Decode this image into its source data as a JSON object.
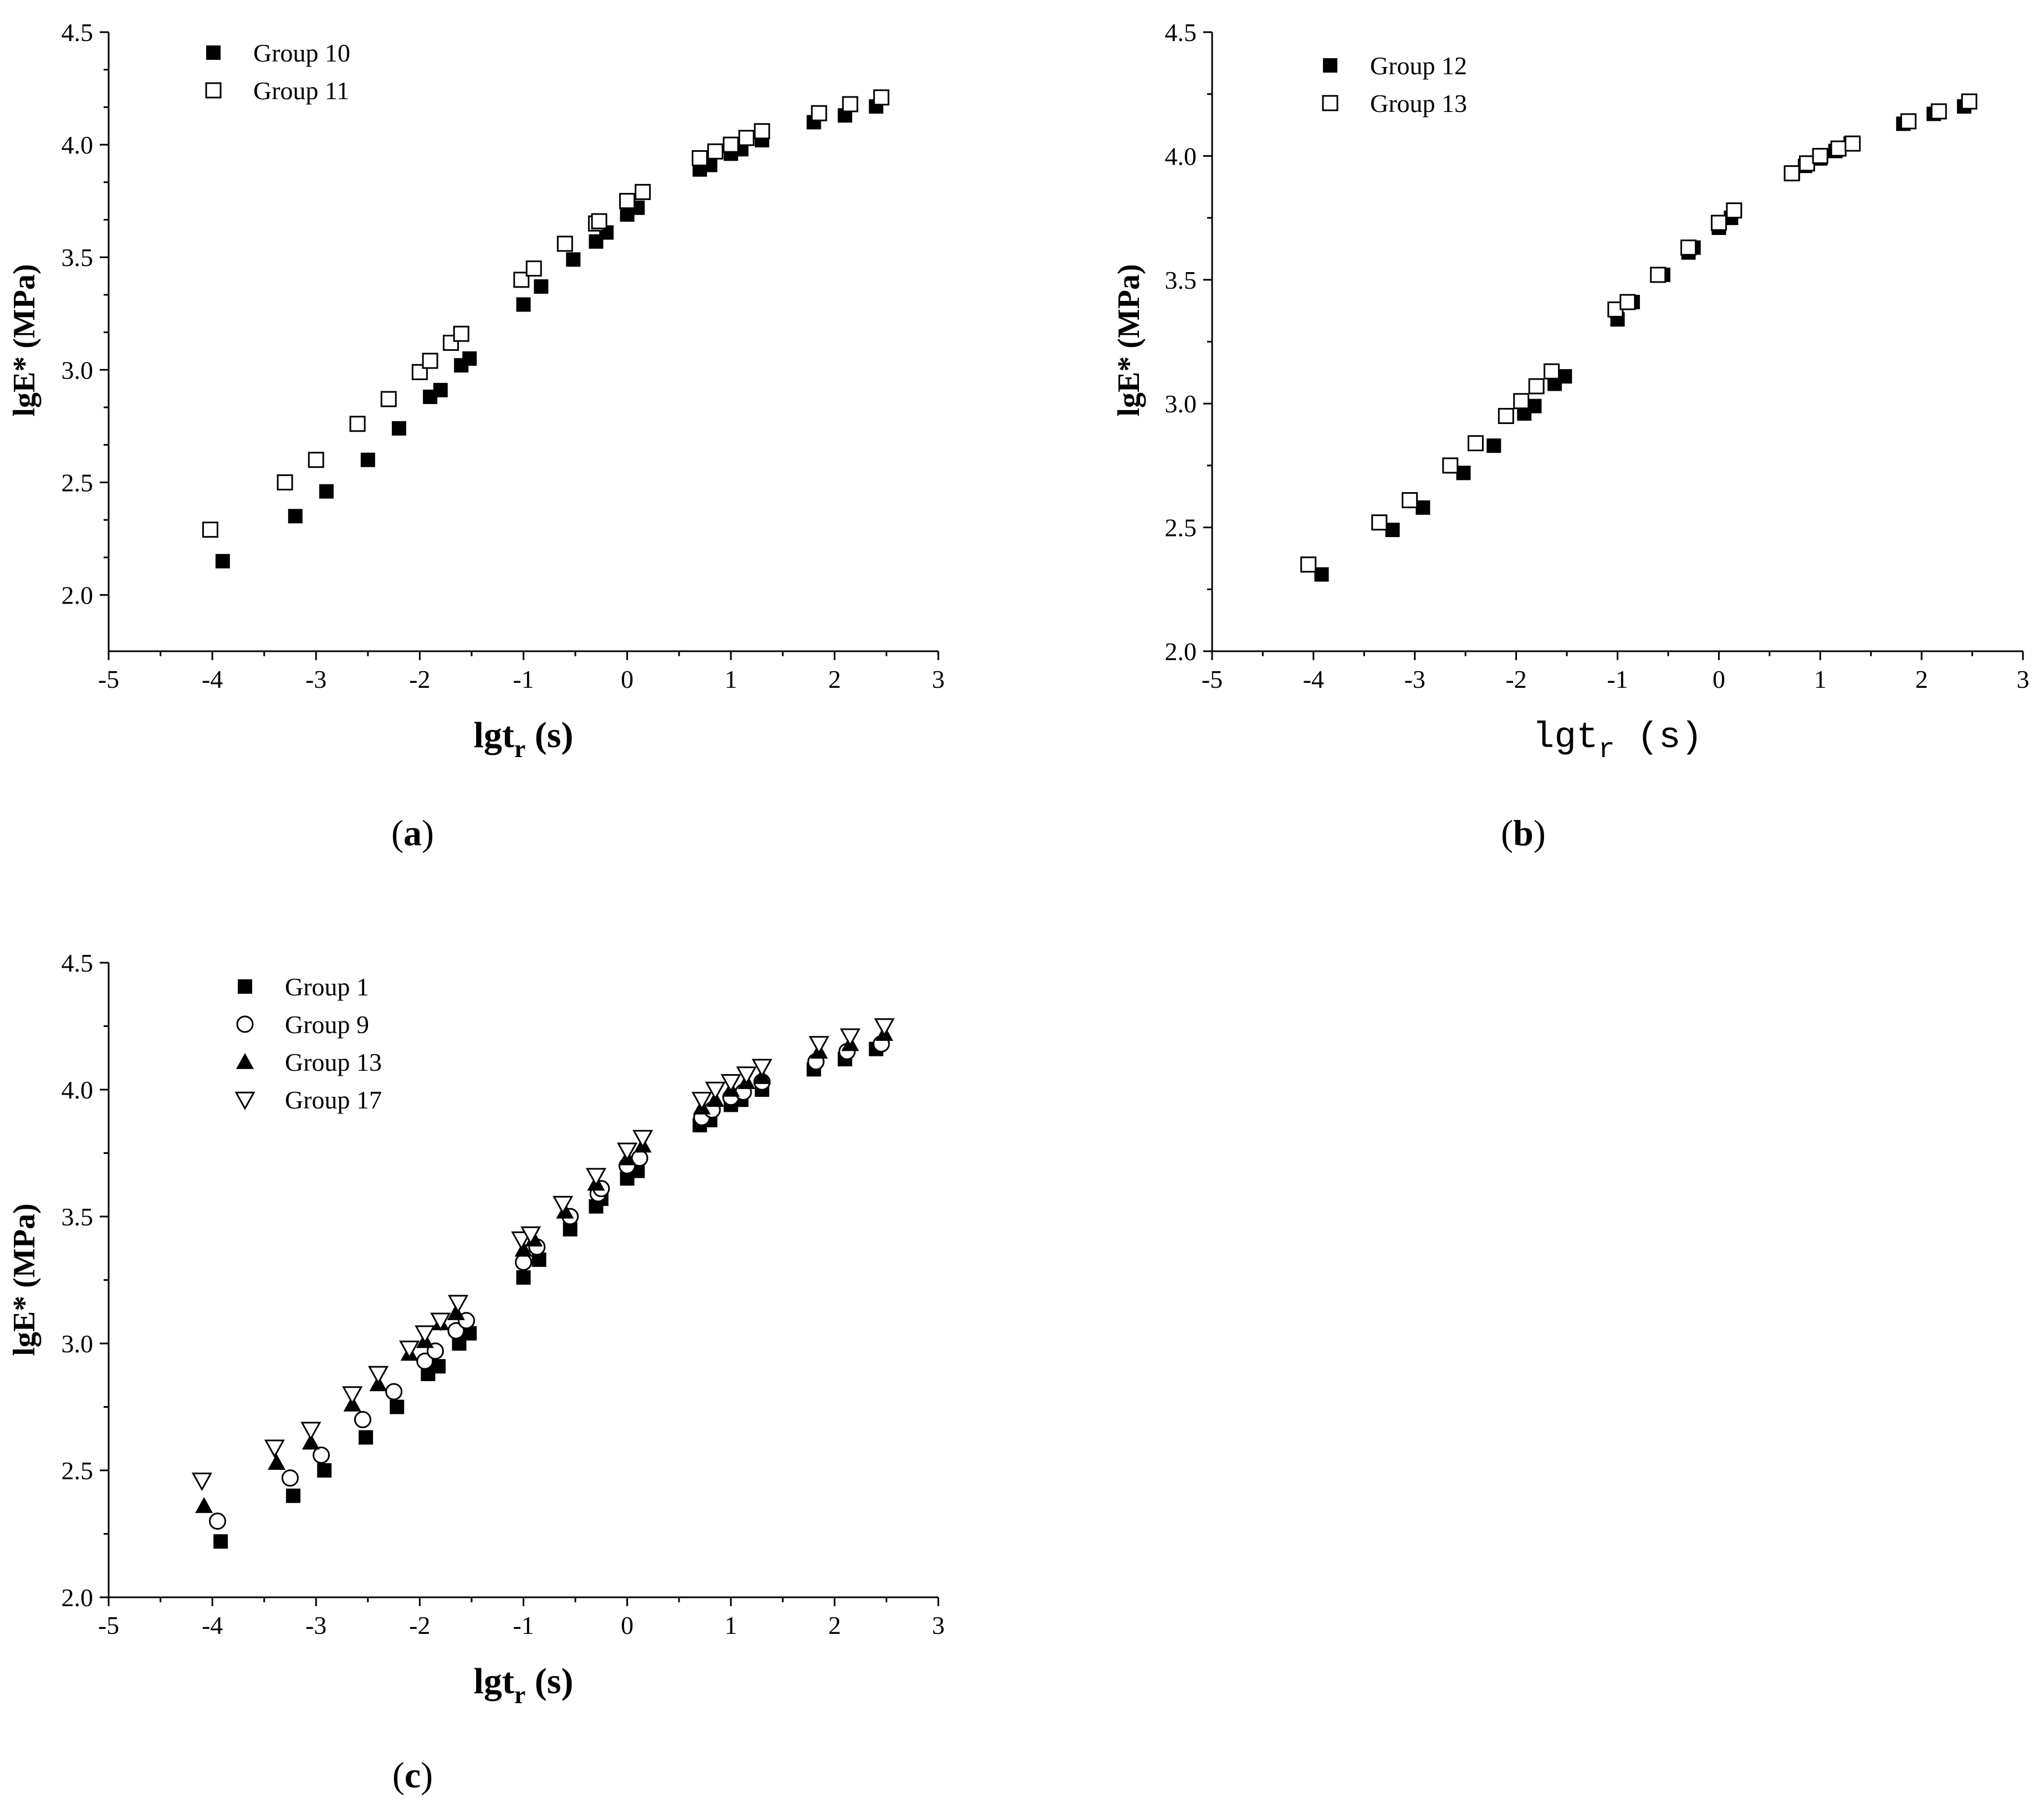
{
  "chart_data": [
    {
      "type": "scatter",
      "panel_label": "a",
      "xlabel": "lgt",
      "xlabel_sub": "r",
      "xlabel_unit": "(s)",
      "ylabel": "lgE* (MPa)",
      "xlim": [
        -5,
        3
      ],
      "ylim": [
        1.75,
        4.5
      ],
      "xticks": [
        -5,
        -4,
        -3,
        -2,
        -1,
        0,
        1,
        2,
        3
      ],
      "yticks": [
        2.0,
        2.5,
        3.0,
        3.5,
        4.0,
        4.5
      ],
      "legend_position": "top-left",
      "series": [
        {
          "name": "Group 10",
          "marker": "filled-square",
          "x": [
            -3.9,
            -3.2,
            -2.9,
            -2.5,
            -2.2,
            -1.9,
            -1.8,
            -1.6,
            -1.52,
            -1.0,
            -0.83,
            -0.52,
            -0.3,
            -0.2,
            0.0,
            0.1,
            0.7,
            0.8,
            1.0,
            1.1,
            1.3,
            1.8,
            2.1,
            2.4
          ],
          "y": [
            2.15,
            2.35,
            2.46,
            2.6,
            2.74,
            2.88,
            2.91,
            3.02,
            3.05,
            3.29,
            3.37,
            3.49,
            3.57,
            3.61,
            3.69,
            3.72,
            3.89,
            3.91,
            3.96,
            3.98,
            4.02,
            4.1,
            4.13,
            4.17
          ]
        },
        {
          "name": "Group 11",
          "marker": "open-square",
          "x": [
            -4.02,
            -3.3,
            -3.0,
            -2.6,
            -2.3,
            -2.0,
            -1.9,
            -1.7,
            -1.6,
            -1.02,
            -0.9,
            -0.6,
            -0.3,
            -0.27,
            0.0,
            0.15,
            0.7,
            0.85,
            1.0,
            1.15,
            1.3,
            1.85,
            2.15,
            2.45
          ],
          "y": [
            2.29,
            2.5,
            2.6,
            2.76,
            2.87,
            2.99,
            3.04,
            3.12,
            3.16,
            3.4,
            3.45,
            3.56,
            3.65,
            3.66,
            3.75,
            3.79,
            3.94,
            3.97,
            4.0,
            4.03,
            4.06,
            4.14,
            4.18,
            4.21
          ]
        }
      ]
    },
    {
      "type": "scatter",
      "panel_label": "b",
      "xlabel": "lgt",
      "xlabel_sub": "r",
      "xlabel_unit": "(s)",
      "ylabel": "lgE* (MPa)",
      "xlim": [
        -5,
        3
      ],
      "ylim": [
        2.0,
        4.5
      ],
      "xticks": [
        -5,
        -4,
        -3,
        -2,
        -1,
        0,
        1,
        2,
        3
      ],
      "yticks": [
        2.0,
        2.5,
        3.0,
        3.5,
        4.0,
        4.5
      ],
      "legend_position": "top-left",
      "series": [
        {
          "name": "Group 12",
          "marker": "filled-square",
          "x": [
            -3.92,
            -3.22,
            -2.92,
            -2.52,
            -2.22,
            -1.92,
            -1.82,
            -1.62,
            -1.52,
            -1.0,
            -0.85,
            -0.55,
            -0.3,
            -0.25,
            0.0,
            0.12,
            0.73,
            0.85,
            1.0,
            1.15,
            1.3,
            1.82,
            2.12,
            2.42
          ],
          "y": [
            2.31,
            2.49,
            2.58,
            2.72,
            2.83,
            2.96,
            2.99,
            3.08,
            3.11,
            3.34,
            3.41,
            3.52,
            3.61,
            3.63,
            3.71,
            3.75,
            3.93,
            3.96,
            3.99,
            4.02,
            4.05,
            4.13,
            4.17,
            4.2
          ]
        },
        {
          "name": "Group 13",
          "marker": "open-square",
          "x": [
            -4.05,
            -3.35,
            -3.05,
            -2.65,
            -2.4,
            -2.1,
            -1.95,
            -1.8,
            -1.65,
            -1.02,
            -0.9,
            -0.6,
            -0.3,
            0.0,
            0.15,
            0.72,
            0.87,
            1.0,
            1.18,
            1.32,
            1.87,
            2.17,
            2.47
          ],
          "y": [
            2.35,
            2.52,
            2.61,
            2.75,
            2.84,
            2.95,
            3.01,
            3.07,
            3.13,
            3.38,
            3.41,
            3.52,
            3.63,
            3.73,
            3.78,
            3.93,
            3.97,
            4.0,
            4.03,
            4.05,
            4.14,
            4.18,
            4.22
          ]
        }
      ]
    },
    {
      "type": "scatter",
      "panel_label": "c",
      "xlabel": "lgt",
      "xlabel_sub": "r",
      "xlabel_unit": "(s)",
      "ylabel": "lgE* (MPa)",
      "xlim": [
        -5,
        3
      ],
      "ylim": [
        2.0,
        4.5
      ],
      "xticks": [
        -5,
        -4,
        -3,
        -2,
        -1,
        0,
        1,
        2,
        3
      ],
      "yticks": [
        2.0,
        2.5,
        3.0,
        3.5,
        4.0,
        4.5
      ],
      "legend_position": "top-left",
      "series": [
        {
          "name": "Group 1",
          "marker": "filled-square",
          "x": [
            -3.92,
            -3.22,
            -2.92,
            -2.52,
            -2.22,
            -1.92,
            -1.82,
            -1.62,
            -1.52,
            -1.0,
            -0.85,
            -0.55,
            -0.3,
            -0.25,
            0.0,
            0.1,
            0.7,
            0.8,
            1.0,
            1.1,
            1.3,
            1.8,
            2.1,
            2.4
          ],
          "y": [
            2.22,
            2.4,
            2.5,
            2.63,
            2.75,
            2.88,
            2.91,
            3.0,
            3.04,
            3.26,
            3.33,
            3.45,
            3.54,
            3.57,
            3.65,
            3.68,
            3.86,
            3.88,
            3.94,
            3.96,
            4.0,
            4.08,
            4.12,
            4.16
          ]
        },
        {
          "name": "Group 9",
          "marker": "open-circle",
          "x": [
            -3.95,
            -3.25,
            -2.95,
            -2.55,
            -2.25,
            -1.95,
            -1.85,
            -1.65,
            -1.55,
            -1.0,
            -0.87,
            -0.55,
            -0.28,
            -0.25,
            0.0,
            0.12,
            0.72,
            0.82,
            1.0,
            1.12,
            1.3,
            1.82,
            2.12,
            2.45
          ],
          "y": [
            2.3,
            2.47,
            2.56,
            2.7,
            2.81,
            2.93,
            2.97,
            3.05,
            3.09,
            3.32,
            3.38,
            3.5,
            3.59,
            3.61,
            3.7,
            3.73,
            3.89,
            3.92,
            3.97,
            3.99,
            4.03,
            4.11,
            4.15,
            4.18
          ]
        },
        {
          "name": "Group 13",
          "marker": "filled-triangle-up",
          "x": [
            -4.08,
            -3.38,
            -3.05,
            -2.65,
            -2.4,
            -2.1,
            -1.95,
            -1.8,
            -1.65,
            -1.0,
            -0.9,
            -0.6,
            -0.3,
            0.0,
            0.15,
            0.72,
            0.85,
            1.0,
            1.15,
            1.3,
            1.85,
            2.15,
            2.48
          ],
          "y": [
            2.36,
            2.53,
            2.61,
            2.76,
            2.84,
            2.96,
            3.01,
            3.08,
            3.12,
            3.37,
            3.41,
            3.52,
            3.63,
            3.73,
            3.78,
            3.93,
            3.96,
            4.0,
            4.03,
            4.05,
            4.15,
            4.18,
            4.22
          ]
        },
        {
          "name": "Group 17",
          "marker": "open-triangle-down",
          "x": [
            -4.1,
            -3.4,
            -3.05,
            -2.65,
            -2.4,
            -2.1,
            -1.95,
            -1.8,
            -1.63,
            -1.02,
            -0.93,
            -0.62,
            -0.3,
            0.0,
            0.15,
            0.72,
            0.85,
            1.0,
            1.15,
            1.3,
            1.85,
            2.15,
            2.48
          ],
          "y": [
            2.46,
            2.59,
            2.66,
            2.8,
            2.88,
            2.98,
            3.04,
            3.09,
            3.16,
            3.41,
            3.43,
            3.55,
            3.66,
            3.76,
            3.81,
            3.96,
            4.0,
            4.03,
            4.06,
            4.09,
            4.18,
            4.21,
            4.25
          ]
        }
      ]
    }
  ]
}
